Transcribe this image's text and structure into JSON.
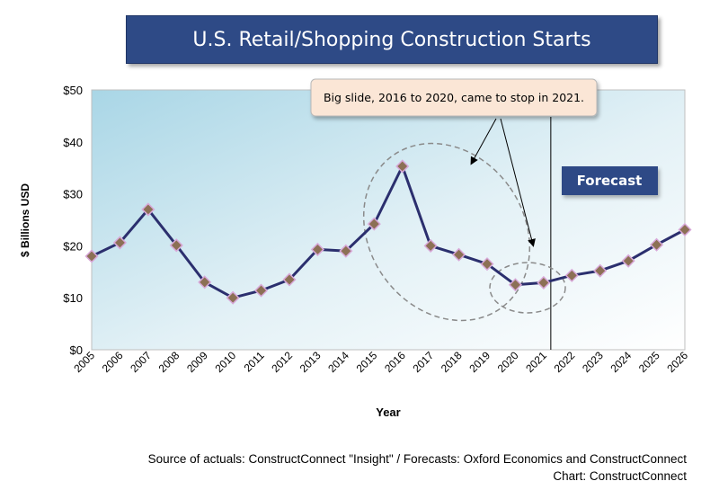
{
  "chart_data": {
    "type": "line",
    "title": "U.S. Retail/Shopping Construction Starts",
    "xlabel": "Year",
    "ylabel": "$ Billions USD",
    "x": [
      "2005",
      "2006",
      "2007",
      "2008",
      "2009",
      "2010",
      "2011",
      "2012",
      "2013",
      "2014",
      "2015",
      "2016",
      "2017",
      "2018",
      "2019",
      "2020",
      "2021",
      "2022",
      "2023",
      "2024",
      "2025",
      "2026"
    ],
    "series": [
      {
        "values": [
          18.0,
          20.6,
          27.0,
          20.1,
          13.0,
          10.0,
          11.4,
          13.5,
          19.3,
          19.0,
          24.2,
          35.3,
          20.0,
          18.3,
          16.5,
          12.5,
          12.9,
          14.3,
          15.2,
          17.1,
          20.2,
          23.1
        ]
      }
    ],
    "ylim": [
      0,
      50
    ],
    "yticks": [
      "$0",
      "$10",
      "$20",
      "$30",
      "$40",
      "$50"
    ],
    "forecast_start": "2021",
    "forecast_label": "Forecast",
    "annotation": "Big slide, 2016 to 2020, came to stop in 2021.",
    "colors": {
      "line": "#2b2f6e",
      "marker": "#8c7055",
      "marker_outline": "#d8a8d8",
      "title_bg": "#2e4a86",
      "plot_bg_dark": "#a9d6e6",
      "plot_bg_light": "#ffffff"
    }
  },
  "footer": {
    "source": "Source of actuals: ConstructConnect \"Insight\" / Forecasts: Oxford Economics and ConstructConnect",
    "credit": "Chart: ConstructConnect"
  }
}
